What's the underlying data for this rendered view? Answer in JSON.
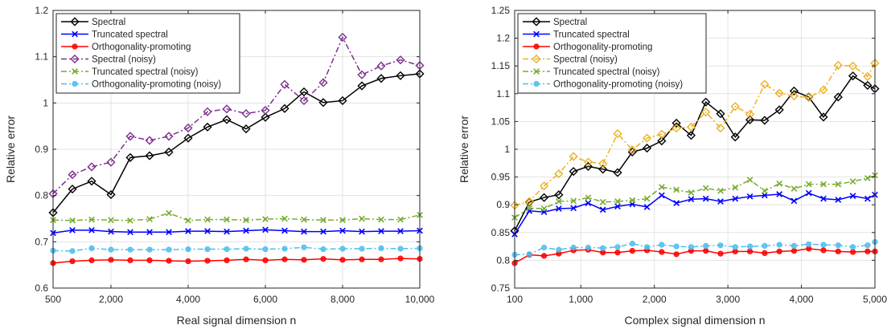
{
  "chart_data": [
    {
      "type": "line",
      "xlabel": "Real signal dimension n",
      "ylabel": "Relative error",
      "xlim": [
        500,
        10000
      ],
      "ylim": [
        0.6,
        1.2
      ],
      "xticks": [
        500,
        2000,
        4000,
        6000,
        8000,
        10000
      ],
      "xtick_labels": [
        "500",
        "2,000",
        "4,000",
        "6,000",
        "8,000",
        "10,000"
      ],
      "yticks": [
        0.6,
        0.7,
        0.8,
        0.9,
        1.0,
        1.1,
        1.2
      ],
      "ytick_labels": [
        "0.6",
        "0.7",
        "0.8",
        "0.9",
        "1",
        "1.1",
        "1.2"
      ],
      "grid": true,
      "legend_position": "top-left",
      "x": [
        500,
        1000,
        1500,
        2000,
        2500,
        3000,
        3500,
        4000,
        4500,
        5000,
        5500,
        6000,
        6500,
        7000,
        7500,
        8000,
        8500,
        9000,
        9500,
        10000
      ],
      "series": [
        {
          "name": "Spectral",
          "color": "#000000",
          "marker": "diamond",
          "dash": "solid",
          "values": [
            0.763,
            0.814,
            0.831,
            0.802,
            0.882,
            0.886,
            0.894,
            0.924,
            0.948,
            0.964,
            0.944,
            0.969,
            0.988,
            1.024,
            1.001,
            1.005,
            1.037,
            1.053,
            1.059,
            1.063
          ]
        },
        {
          "name": "Truncated spectral",
          "color": "#0000ff",
          "marker": "x",
          "dash": "solid",
          "values": [
            0.719,
            0.725,
            0.725,
            0.722,
            0.721,
            0.721,
            0.721,
            0.723,
            0.723,
            0.722,
            0.724,
            0.726,
            0.724,
            0.722,
            0.722,
            0.724,
            0.722,
            0.723,
            0.723,
            0.724
          ]
        },
        {
          "name": "Orthogonality-promoting",
          "color": "#ff0000",
          "marker": "circle",
          "dash": "solid",
          "values": [
            0.654,
            0.658,
            0.66,
            0.661,
            0.66,
            0.66,
            0.659,
            0.658,
            0.659,
            0.66,
            0.662,
            0.66,
            0.662,
            0.661,
            0.663,
            0.661,
            0.662,
            0.662,
            0.664,
            0.663
          ]
        },
        {
          "name": "Spectral (noisy)",
          "color": "#7e2f8e",
          "marker": "diamond",
          "dash": "dashdot",
          "values": [
            0.804,
            0.845,
            0.862,
            0.872,
            0.928,
            0.919,
            0.928,
            0.946,
            0.981,
            0.987,
            0.977,
            0.984,
            1.04,
            1.005,
            1.044,
            1.142,
            1.061,
            1.08,
            1.093,
            1.081
          ]
        },
        {
          "name": "Truncated spectral (noisy)",
          "color": "#77ac30",
          "marker": "x",
          "dash": "dashdot",
          "values": [
            0.747,
            0.746,
            0.748,
            0.747,
            0.746,
            0.749,
            0.762,
            0.746,
            0.748,
            0.748,
            0.747,
            0.749,
            0.75,
            0.748,
            0.747,
            0.747,
            0.75,
            0.748,
            0.748,
            0.758
          ]
        },
        {
          "name": "Orthogonality-promoting (noisy)",
          "color": "#4dbeee",
          "marker": "circle",
          "dash": "dashdot",
          "values": [
            0.681,
            0.68,
            0.686,
            0.683,
            0.683,
            0.683,
            0.683,
            0.684,
            0.684,
            0.684,
            0.685,
            0.684,
            0.685,
            0.688,
            0.684,
            0.685,
            0.685,
            0.686,
            0.685,
            0.686
          ]
        }
      ]
    },
    {
      "type": "line",
      "xlabel": "Complex signal dimension n",
      "ylabel": "Relative error",
      "xlim": [
        100,
        5000
      ],
      "ylim": [
        0.75,
        1.25
      ],
      "xticks": [
        100,
        1000,
        2000,
        3000,
        4000,
        5000
      ],
      "xtick_labels": [
        "100",
        "1,000",
        "2,000",
        "3,000",
        "4,000",
        "5,000"
      ],
      "yticks": [
        0.75,
        0.8,
        0.85,
        0.9,
        0.95,
        1.0,
        1.05,
        1.1,
        1.15,
        1.2,
        1.25
      ],
      "ytick_labels": [
        "0.75",
        "0.8",
        "0.85",
        "0.9",
        "0.95",
        "1",
        "1.05",
        "1.1",
        "1.15",
        "1.2",
        "1.25"
      ],
      "grid": true,
      "legend_position": "top-left",
      "x": [
        100,
        300,
        500,
        700,
        900,
        1100,
        1300,
        1500,
        1700,
        1900,
        2100,
        2300,
        2500,
        2700,
        2900,
        3100,
        3300,
        3500,
        3700,
        3900,
        4100,
        4300,
        4500,
        4700,
        4900,
        5000
      ],
      "series": [
        {
          "name": "Spectral",
          "color": "#000000",
          "marker": "diamond",
          "dash": "solid",
          "values": [
            0.853,
            0.905,
            0.913,
            0.918,
            0.96,
            0.969,
            0.964,
            0.958,
            0.995,
            1.002,
            1.015,
            1.047,
            1.025,
            1.085,
            1.064,
            1.022,
            1.053,
            1.052,
            1.071,
            1.105,
            1.094,
            1.058,
            1.094,
            1.132,
            1.115,
            1.109
          ]
        },
        {
          "name": "Truncated spectral",
          "color": "#0000ff",
          "marker": "x",
          "dash": "solid",
          "values": [
            0.847,
            0.889,
            0.887,
            0.893,
            0.894,
            0.903,
            0.891,
            0.897,
            0.901,
            0.896,
            0.917,
            0.903,
            0.91,
            0.911,
            0.906,
            0.911,
            0.915,
            0.917,
            0.919,
            0.907,
            0.921,
            0.911,
            0.909,
            0.916,
            0.911,
            0.918
          ]
        },
        {
          "name": "Orthogonality-promoting",
          "color": "#ff0000",
          "marker": "circle",
          "dash": "solid",
          "values": [
            0.795,
            0.81,
            0.808,
            0.812,
            0.818,
            0.819,
            0.814,
            0.814,
            0.817,
            0.818,
            0.815,
            0.811,
            0.817,
            0.817,
            0.812,
            0.816,
            0.816,
            0.813,
            0.816,
            0.817,
            0.821,
            0.818,
            0.816,
            0.815,
            0.816,
            0.816
          ]
        },
        {
          "name": "Spectral (noisy)",
          "color": "#edb120",
          "marker": "diamond",
          "dash": "dashdot",
          "values": [
            0.899,
            0.906,
            0.934,
            0.956,
            0.987,
            0.977,
            0.974,
            1.028,
            0.999,
            1.02,
            1.027,
            1.038,
            1.04,
            1.067,
            1.038,
            1.077,
            1.063,
            1.117,
            1.101,
            1.096,
            1.093,
            1.107,
            1.151,
            1.15,
            1.131,
            1.155
          ]
        },
        {
          "name": "Truncated spectral (noisy)",
          "color": "#77ac30",
          "marker": "x",
          "dash": "dashdot",
          "values": [
            0.877,
            0.894,
            0.893,
            0.906,
            0.907,
            0.913,
            0.905,
            0.906,
            0.908,
            0.911,
            0.932,
            0.927,
            0.922,
            0.93,
            0.925,
            0.931,
            0.945,
            0.925,
            0.938,
            0.929,
            0.937,
            0.937,
            0.937,
            0.942,
            0.948,
            0.953
          ]
        },
        {
          "name": "Orthogonality-promoting (noisy)",
          "color": "#4dbeee",
          "marker": "circle",
          "dash": "dashdot",
          "values": [
            0.81,
            0.811,
            0.823,
            0.819,
            0.823,
            0.823,
            0.822,
            0.824,
            0.83,
            0.824,
            0.828,
            0.825,
            0.824,
            0.826,
            0.827,
            0.824,
            0.825,
            0.826,
            0.828,
            0.826,
            0.829,
            0.828,
            0.827,
            0.824,
            0.827,
            0.833
          ]
        }
      ]
    }
  ]
}
